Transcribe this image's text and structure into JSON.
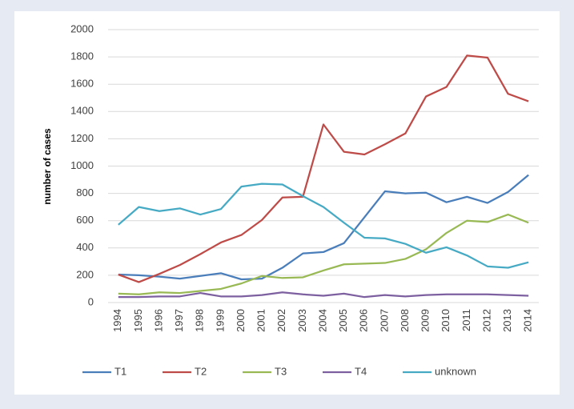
{
  "chart_data": {
    "type": "line",
    "y_label": "number of cases",
    "categories": [
      "1994",
      "1995",
      "1996",
      "1997",
      "1998",
      "1999",
      "2000",
      "2001",
      "2002",
      "2003",
      "2004",
      "2005",
      "2006",
      "2007",
      "2008",
      "2009",
      "2010",
      "2011",
      "2012",
      "2013",
      "2014"
    ],
    "series": [
      {
        "name": "T1",
        "color": "#4a7ebb",
        "values": [
          205,
          200,
          190,
          175,
          195,
          215,
          170,
          175,
          255,
          360,
          370,
          435,
          625,
          815,
          800,
          805,
          735,
          775,
          730,
          810,
          935
        ]
      },
      {
        "name": "T2",
        "color": "#be4b48",
        "values": [
          205,
          150,
          210,
          275,
          355,
          440,
          495,
          605,
          770,
          775,
          1305,
          1105,
          1085,
          1160,
          1240,
          1510,
          1580,
          1810,
          1795,
          1530,
          1475
        ]
      },
      {
        "name": "T3",
        "color": "#98b954",
        "values": [
          65,
          60,
          75,
          70,
          85,
          100,
          140,
          195,
          180,
          185,
          235,
          280,
          285,
          290,
          320,
          390,
          510,
          600,
          590,
          645,
          585
        ]
      },
      {
        "name": "T4",
        "color": "#7d60a0",
        "values": [
          40,
          40,
          45,
          45,
          70,
          45,
          45,
          55,
          75,
          60,
          50,
          65,
          40,
          55,
          45,
          55,
          60,
          60,
          60,
          55,
          50
        ]
      },
      {
        "name": "unknown",
        "color": "#46aac4",
        "values": [
          570,
          700,
          670,
          690,
          645,
          685,
          850,
          870,
          865,
          780,
          700,
          585,
          475,
          470,
          430,
          365,
          405,
          345,
          265,
          255,
          295
        ]
      }
    ],
    "ylim": [
      0,
      2000
    ],
    "yticks": [
      0,
      200,
      400,
      600,
      800,
      1000,
      1200,
      1400,
      1600,
      1800,
      2000
    ],
    "grid": true,
    "legend": "bottom"
  }
}
